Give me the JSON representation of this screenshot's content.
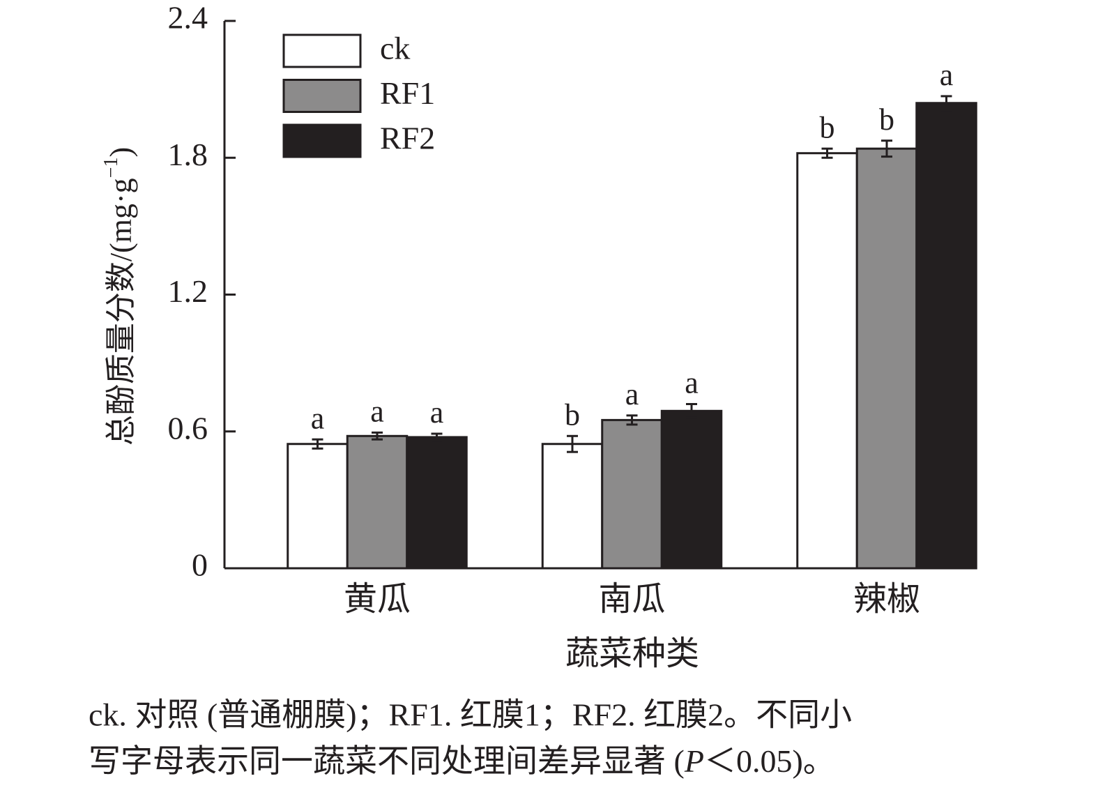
{
  "chart_data": {
    "type": "bar",
    "categories": [
      "黄瓜",
      "南瓜",
      "辣椒"
    ],
    "series": [
      {
        "name": "ck",
        "color": "#ffffff",
        "values": [
          0.545,
          0.545,
          1.82
        ],
        "errors": [
          0.02,
          0.035,
          0.02
        ],
        "letters": [
          "a",
          "b",
          "b"
        ]
      },
      {
        "name": "RF1",
        "color": "#8c8b8b",
        "values": [
          0.58,
          0.65,
          1.84
        ],
        "errors": [
          0.015,
          0.02,
          0.035
        ],
        "letters": [
          "a",
          "a",
          "b"
        ]
      },
      {
        "name": "RF2",
        "color": "#231f20",
        "values": [
          0.575,
          0.69,
          2.04
        ],
        "errors": [
          0.015,
          0.03,
          0.03
        ],
        "letters": [
          "a",
          "a",
          "a"
        ]
      }
    ],
    "ylim": [
      0,
      2.4
    ],
    "yticks": [
      0,
      {
        "value": 0.6,
        "label": "0.6"
      },
      {
        "value": 1.2,
        "label": "1.2"
      },
      {
        "value": 1.8,
        "label": "1.8"
      },
      {
        "value": 2.4,
        "label": "2.4"
      }
    ],
    "ylabel": [
      "总酚质量分数/(mg·g",
      "−1",
      ")"
    ],
    "xlabel": "蔬菜种类",
    "legend": "top-left",
    "caption": {
      "line1": "ck. 对照 (普通棚膜)；RF1. 红膜1；RF2. 红膜2。不同小",
      "line2": [
        "写字母表示同一蔬菜不同处理间差异显著 (",
        "P",
        "＜0.05)。"
      ]
    }
  }
}
